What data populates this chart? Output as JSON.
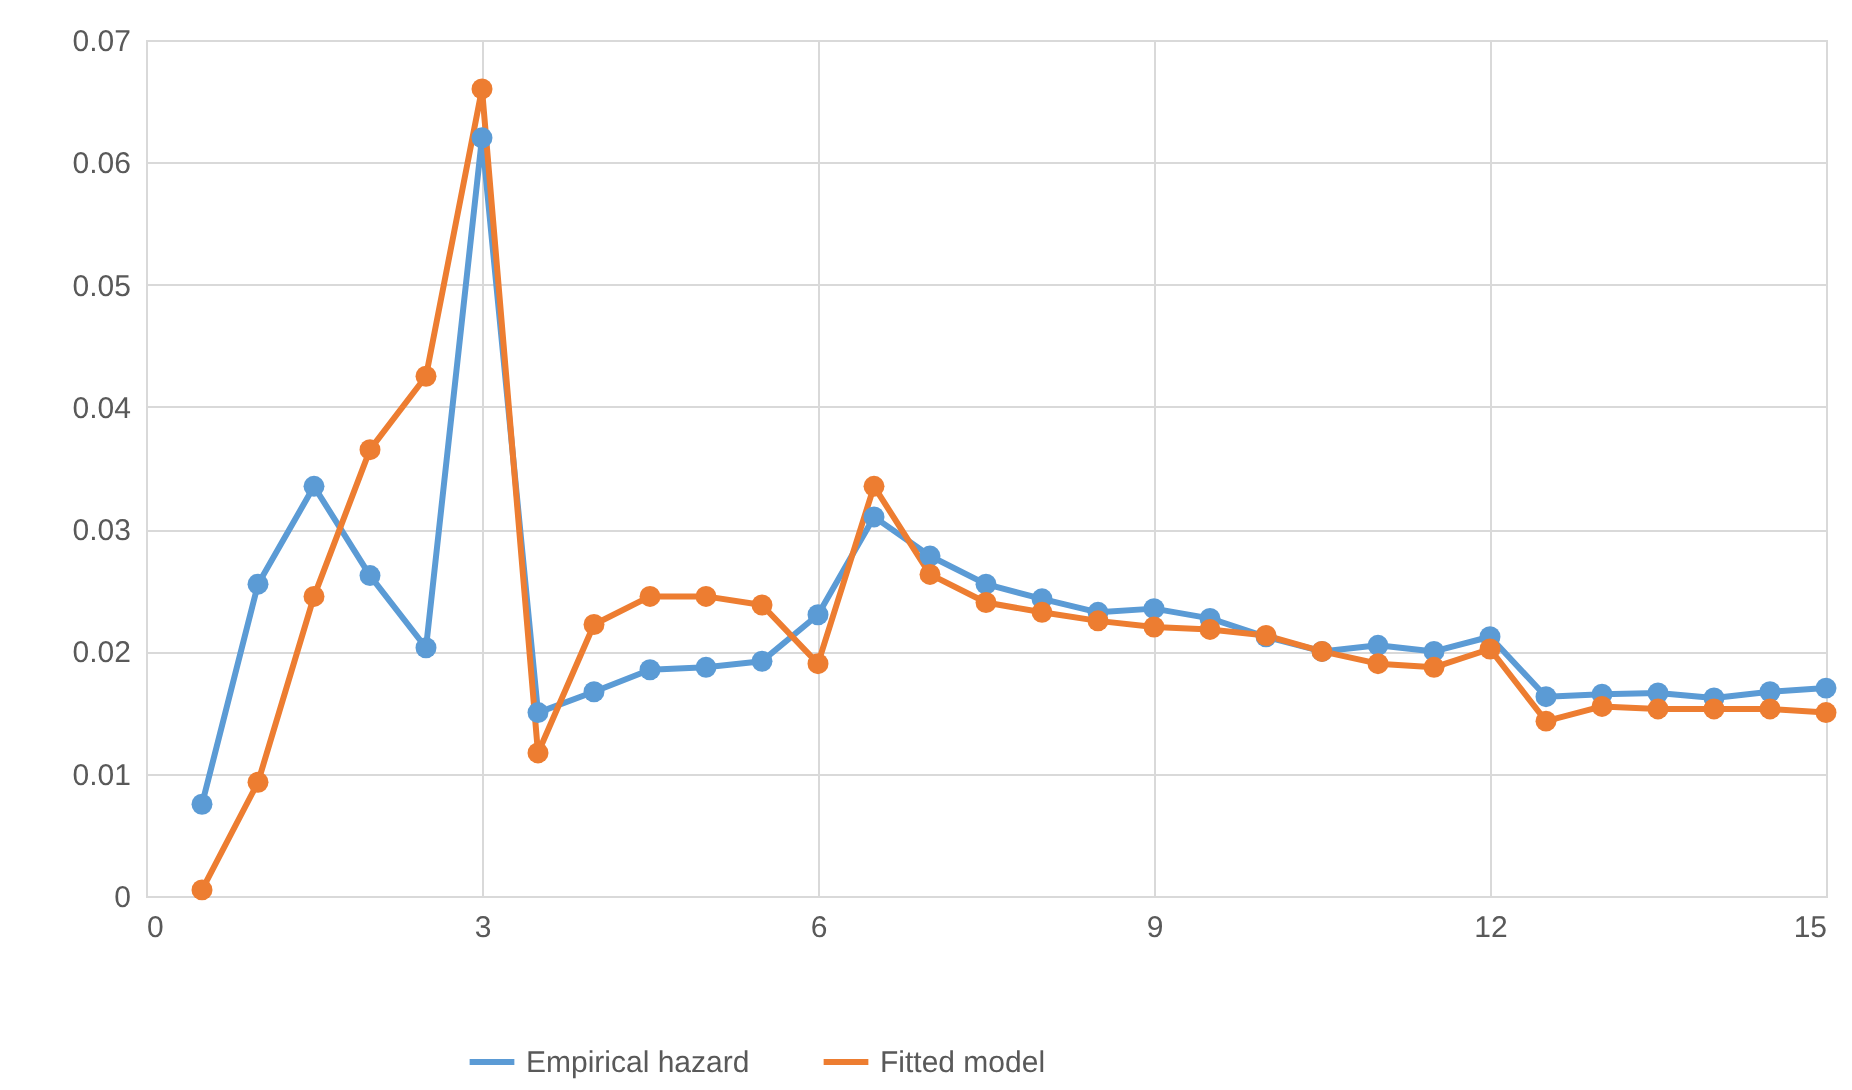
{
  "chart_data": {
    "type": "line",
    "x": [
      0.5,
      1,
      1.5,
      2,
      2.5,
      3,
      3.5,
      4,
      4.5,
      5,
      5.5,
      6,
      6.5,
      7,
      7.5,
      8,
      8.5,
      9,
      9.5,
      10,
      10.5,
      11,
      11.5,
      12,
      12.5,
      13,
      13.5,
      14,
      14.5,
      15
    ],
    "series": [
      {
        "name": "Empirical hazard",
        "color": "#5b9bd5",
        "values": [
          0.0075,
          0.0255,
          0.0335,
          0.0262,
          0.0203,
          0.062,
          0.015,
          0.0167,
          0.0185,
          0.0187,
          0.0192,
          0.023,
          0.031,
          0.0278,
          0.0255,
          0.0243,
          0.0232,
          0.0235,
          0.0227,
          0.0212,
          0.02,
          0.0205,
          0.02,
          0.0212,
          0.0163,
          0.0165,
          0.0166,
          0.0162,
          0.0167,
          0.017
        ]
      },
      {
        "name": "Fitted model",
        "color": "#ed7d31",
        "values": [
          0.0005,
          0.0093,
          0.0245,
          0.0365,
          0.0425,
          0.066,
          0.0117,
          0.0222,
          0.0245,
          0.0245,
          0.0238,
          0.019,
          0.0335,
          0.0263,
          0.024,
          0.0232,
          0.0225,
          0.022,
          0.0218,
          0.0213,
          0.02,
          0.019,
          0.0187,
          0.0202,
          0.0143,
          0.0155,
          0.0153,
          0.0153,
          0.0153,
          0.015
        ]
      }
    ],
    "xlim": [
      0,
      15
    ],
    "xticks": [
      0,
      3,
      6,
      9,
      12,
      15
    ],
    "ylim": [
      0,
      0.07
    ],
    "yticks": [
      0,
      0.01,
      0.02,
      0.03,
      0.04,
      0.05,
      0.06,
      0.07
    ],
    "grid": true,
    "legend": "bottom",
    "marker": "circle",
    "line_style": "solid"
  }
}
